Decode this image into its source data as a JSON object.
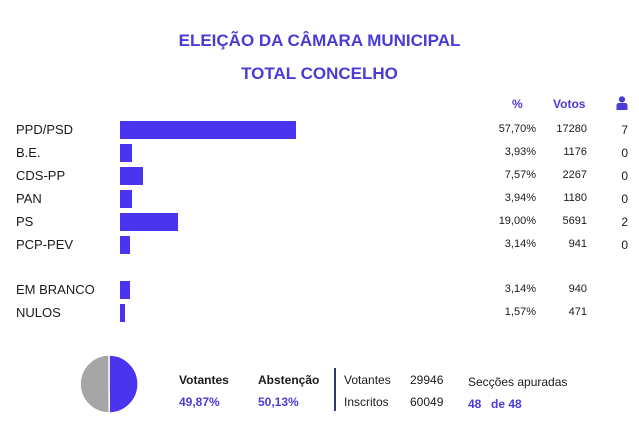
{
  "colors": {
    "accent": "#4b3bd6",
    "bar": "#4a34f0",
    "pie_votantes": "#4a34f0",
    "pie_abstencao": "#a6a6a6"
  },
  "header": {
    "title": "ELEIÇÃO DA CÂMARA MUNICIPAL",
    "subtitle": "TOTAL CONCELHO",
    "col_pct": "%",
    "col_votes": "Votos",
    "seat_icon": "person-icon"
  },
  "chart_data": {
    "type": "bar",
    "orientation": "horizontal",
    "xlim": [
      0,
      100
    ],
    "rows": [
      {
        "party": "PPD/PSD",
        "pct": "57,70%",
        "value": 57.7,
        "votes": "17280",
        "seats": "7"
      },
      {
        "party": "B.E.",
        "pct": "3,93%",
        "value": 3.93,
        "votes": "1176",
        "seats": "0"
      },
      {
        "party": "CDS-PP",
        "pct": "7,57%",
        "value": 7.57,
        "votes": "2267",
        "seats": "0"
      },
      {
        "party": "PAN",
        "pct": "3,94%",
        "value": 3.94,
        "votes": "1180",
        "seats": "0"
      },
      {
        "party": "PS",
        "pct": "19,00%",
        "value": 19.0,
        "votes": "5691",
        "seats": "2"
      },
      {
        "party": "PCP-PEV",
        "pct": "3,14%",
        "value": 3.14,
        "votes": "941",
        "seats": "0"
      },
      {
        "party": "EM BRANCO",
        "pct": "3,14%",
        "value": 3.14,
        "votes": "940",
        "seats": ""
      },
      {
        "party": "NULOS",
        "pct": "1,57%",
        "value": 1.57,
        "votes": "471",
        "seats": ""
      }
    ],
    "pie": {
      "type": "pie",
      "slices": [
        {
          "label": "Votantes",
          "value": 49.87
        },
        {
          "label": "Abstenção",
          "value": 50.13
        }
      ]
    }
  },
  "summary": {
    "votantes_label": "Votantes",
    "votantes_pct": "49,87%",
    "abstencao_label": "Abstenção",
    "abstencao_pct": "50,13%",
    "votantes_count_label": "Votantes",
    "votantes_count": "29946",
    "inscritos_label": "Inscritos",
    "inscritos_count": "60049",
    "seccoes_label": "Secções apuradas",
    "seccoes_done": "48",
    "seccoes_total": "de 48"
  }
}
